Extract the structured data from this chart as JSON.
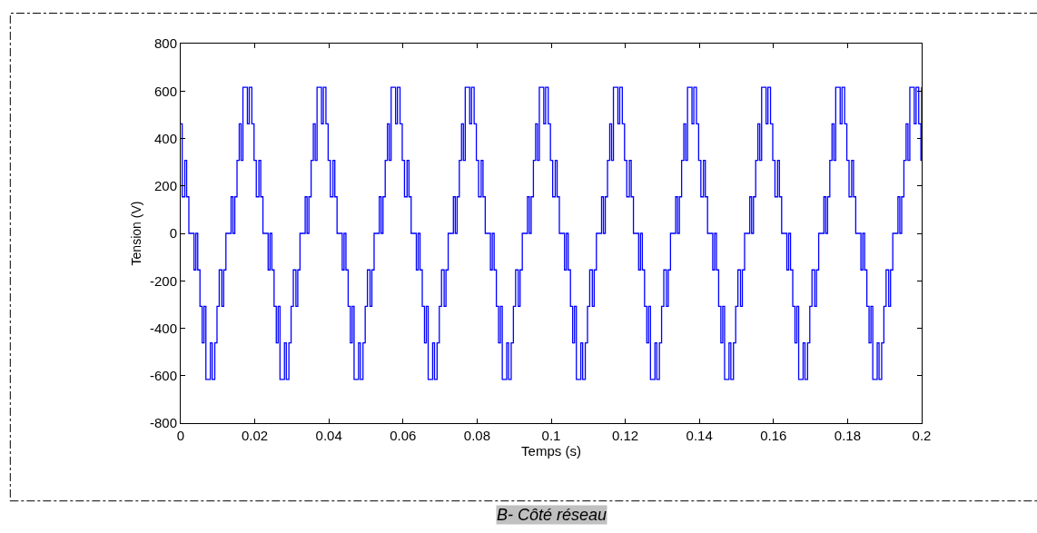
{
  "chart_data": {
    "type": "step",
    "xlabel": "Temps (s)",
    "ylabel": "Tension (V)",
    "annotations": [
      "B- Côté réseau"
    ],
    "xlim": [
      0,
      0.2
    ],
    "xticks": [
      0,
      0.02,
      0.04,
      0.06,
      0.08,
      0.1,
      0.12,
      0.14,
      0.16,
      0.18,
      0.2
    ],
    "ylim": [
      -800,
      800
    ],
    "yticks": [
      -800,
      -600,
      -400,
      -200,
      0,
      200,
      400,
      600,
      800
    ],
    "line_style": "solid",
    "marker": "none",
    "series": [
      {
        "color": "#0000ff",
        "x": [
          0,
          0.0004,
          0.0011,
          0.0016,
          0.0022,
          0.0036,
          0.0041,
          0.0046,
          0.0052,
          0.0058,
          0.0063,
          0.0068,
          0.008,
          0.0085,
          0.0092,
          0.0098,
          0.0104,
          0.0111,
          0.0116,
          0.0122,
          0.0136,
          0.0141,
          0.0146,
          0.0152,
          0.0158,
          0.0163,
          0.0168,
          0.018,
          0.0185,
          0.0192,
          0.0198,
          0.0204,
          0.0211,
          0.0216,
          0.0222,
          0.0236,
          0.0241,
          0.0246,
          0.0252,
          0.0258,
          0.0263,
          0.0268,
          0.028,
          0.0285,
          0.0292,
          0.0298,
          0.0304,
          0.0311,
          0.0316,
          0.0322,
          0.0336,
          0.0341,
          0.0346,
          0.0352,
          0.0358,
          0.0363,
          0.0368,
          0.038,
          0.0385,
          0.0392,
          0.0398,
          0.0404,
          0.0411,
          0.0416,
          0.0422,
          0.0436,
          0.0441,
          0.0446,
          0.0452,
          0.0458,
          0.0463,
          0.0468,
          0.048,
          0.0485,
          0.0492,
          0.0498,
          0.0504,
          0.0511,
          0.0516,
          0.0522,
          0.0536,
          0.0541,
          0.0546,
          0.0552,
          0.0558,
          0.0563,
          0.0568,
          0.058,
          0.0585,
          0.0592,
          0.0598,
          0.0604,
          0.0611,
          0.0616,
          0.0622,
          0.0636,
          0.0641,
          0.0646,
          0.0652,
          0.0658,
          0.0663,
          0.0668,
          0.068,
          0.0685,
          0.0692,
          0.0698,
          0.0704,
          0.0711,
          0.0716,
          0.0722,
          0.0736,
          0.0741,
          0.0746,
          0.0752,
          0.0758,
          0.0763,
          0.0768,
          0.078,
          0.0785,
          0.0792,
          0.0798,
          0.0804,
          0.0811,
          0.0816,
          0.0822,
          0.0836,
          0.0841,
          0.0846,
          0.0852,
          0.0858,
          0.0863,
          0.0868,
          0.088,
          0.0885,
          0.0892,
          0.0898,
          0.0904,
          0.0911,
          0.0916,
          0.0922,
          0.0936,
          0.0941,
          0.0946,
          0.0952,
          0.0958,
          0.0963,
          0.0968,
          0.098,
          0.0985,
          0.0992,
          0.0998,
          0.1004,
          0.1011,
          0.1016,
          0.1022,
          0.1036,
          0.1041,
          0.1046,
          0.1052,
          0.1058,
          0.1063,
          0.1068,
          0.108,
          0.1085,
          0.1092,
          0.1098,
          0.1104,
          0.1111,
          0.1116,
          0.1122,
          0.1136,
          0.1141,
          0.1146,
          0.1152,
          0.1158,
          0.1163,
          0.1168,
          0.118,
          0.1185,
          0.1192,
          0.1198,
          0.1204,
          0.1211,
          0.1216,
          0.1222,
          0.1236,
          0.1241,
          0.1246,
          0.1252,
          0.1258,
          0.1263,
          0.1268,
          0.128,
          0.1285,
          0.1292,
          0.1298,
          0.1304,
          0.1311,
          0.1316,
          0.1322,
          0.1336,
          0.1341,
          0.1346,
          0.1352,
          0.1358,
          0.1363,
          0.1368,
          0.138,
          0.1385,
          0.1392,
          0.1398,
          0.1404,
          0.1411,
          0.1416,
          0.1422,
          0.1436,
          0.1441,
          0.1446,
          0.1452,
          0.1458,
          0.1463,
          0.1468,
          0.148,
          0.1485,
          0.1492,
          0.1498,
          0.1504,
          0.1511,
          0.1516,
          0.1522,
          0.1536,
          0.1541,
          0.1546,
          0.1552,
          0.1558,
          0.1563,
          0.1568,
          0.158,
          0.1585,
          0.1592,
          0.1598,
          0.1604,
          0.1611,
          0.1616,
          0.1622,
          0.1636,
          0.1641,
          0.1646,
          0.1652,
          0.1658,
          0.1663,
          0.1668,
          0.168,
          0.1685,
          0.1692,
          0.1698,
          0.1704,
          0.1711,
          0.1716,
          0.1722,
          0.1736,
          0.1741,
          0.1746,
          0.1752,
          0.1758,
          0.1763,
          0.1768,
          0.178,
          0.1785,
          0.1792,
          0.1798,
          0.1804,
          0.1811,
          0.1816,
          0.1822,
          0.1836,
          0.1841,
          0.1846,
          0.1852,
          0.1858,
          0.1863,
          0.1868,
          0.188,
          0.1885,
          0.1892,
          0.1898,
          0.1904,
          0.1911,
          0.1916,
          0.1922,
          0.1936,
          0.1941,
          0.1946,
          0.1952,
          0.1958,
          0.1963,
          0.1968,
          0.198,
          0.1985,
          0.1992,
          0.1998,
          0.2
        ],
        "values": [
          462,
          154,
          308,
          154,
          0,
          -154,
          0,
          -154,
          -308,
          -462,
          -308,
          -616,
          -462,
          -616,
          -462,
          -308,
          -154,
          -308,
          -154,
          0,
          154,
          0,
          154,
          308,
          462,
          308,
          616,
          462,
          616,
          462,
          308,
          154,
          308,
          154,
          0,
          -154,
          0,
          -154,
          -308,
          -462,
          -308,
          -616,
          -462,
          -616,
          -462,
          -308,
          -154,
          -308,
          -154,
          0,
          154,
          0,
          154,
          308,
          462,
          308,
          616,
          462,
          616,
          462,
          308,
          154,
          308,
          154,
          0,
          -154,
          0,
          -154,
          -308,
          -462,
          -308,
          -616,
          -462,
          -616,
          -462,
          -308,
          -154,
          -308,
          -154,
          0,
          154,
          0,
          154,
          308,
          462,
          308,
          616,
          462,
          616,
          462,
          308,
          154,
          308,
          154,
          0,
          -154,
          0,
          -154,
          -308,
          -462,
          -308,
          -616,
          -462,
          -616,
          -462,
          -308,
          -154,
          -308,
          -154,
          0,
          154,
          0,
          154,
          308,
          462,
          308,
          616,
          462,
          616,
          462,
          308,
          154,
          308,
          154,
          0,
          -154,
          0,
          -154,
          -308,
          -462,
          -308,
          -616,
          -462,
          -616,
          -462,
          -308,
          -154,
          -308,
          -154,
          0,
          154,
          0,
          154,
          308,
          462,
          308,
          616,
          462,
          616,
          462,
          308,
          154,
          308,
          154,
          0,
          -154,
          0,
          -154,
          -308,
          -462,
          -308,
          -616,
          -462,
          -616,
          -462,
          -308,
          -154,
          -308,
          -154,
          0,
          154,
          0,
          154,
          308,
          462,
          308,
          616,
          462,
          616,
          462,
          308,
          154,
          308,
          154,
          0,
          -154,
          0,
          -154,
          -308,
          -462,
          -308,
          -616,
          -462,
          -616,
          -462,
          -308,
          -154,
          -308,
          -154,
          0,
          154,
          0,
          154,
          308,
          462,
          308,
          616,
          462,
          616,
          462,
          308,
          154,
          308,
          154,
          0,
          -154,
          0,
          -154,
          -308,
          -462,
          -308,
          -616,
          -462,
          -616,
          -462,
          -308,
          -154,
          -308,
          -154,
          0,
          154,
          0,
          154,
          308,
          462,
          308,
          616,
          462,
          616,
          462,
          308,
          154,
          308,
          154,
          0,
          -154,
          0,
          -154,
          -308,
          -462,
          -308,
          -616,
          -462,
          -616,
          -462,
          -308,
          -154,
          -308,
          -154,
          0,
          154,
          0,
          154,
          308,
          462,
          308,
          616,
          462,
          616,
          462,
          308,
          154,
          308,
          154,
          0,
          -154,
          0,
          -154,
          -308,
          -462,
          -308,
          -616,
          -462,
          -616,
          -462,
          -308,
          -154,
          -308,
          -154,
          0,
          154,
          0,
          154,
          308,
          462,
          308,
          616,
          462,
          616,
          462,
          308,
          616
        ]
      }
    ]
  }
}
